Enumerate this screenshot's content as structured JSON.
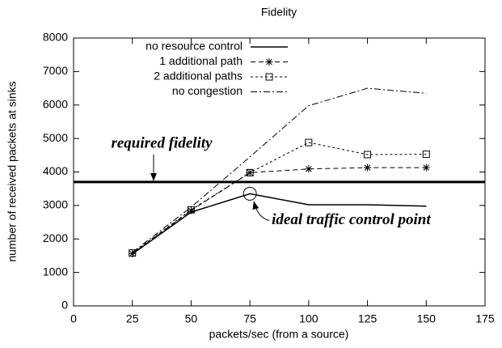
{
  "chart_data": {
    "type": "line",
    "title": "Fidelity",
    "xlabel": "packets/sec (from a source)",
    "ylabel": "number of received packets at sinks",
    "x": [
      25,
      50,
      75,
      100,
      125,
      150
    ],
    "series": [
      {
        "name": "no resource control",
        "color": "#000000",
        "dash": "none",
        "marker": "none",
        "width": 1.5,
        "values": [
          1550,
          2800,
          3350,
          3020,
          3020,
          2980
        ]
      },
      {
        "name": "1 additional path",
        "color": "#000000",
        "dash": "6,4",
        "marker": "star",
        "width": 1,
        "values": [
          1560,
          2850,
          3980,
          4090,
          4130,
          4130
        ]
      },
      {
        "name": "2 additional paths",
        "color": "#000000",
        "dash": "3,3",
        "marker": "square",
        "width": 1,
        "values": [
          1580,
          2870,
          3980,
          4880,
          4520,
          4530
        ]
      },
      {
        "name": "no congestion",
        "color": "#000000",
        "dash": "8,3,2,3",
        "marker": "none",
        "width": 1,
        "values": [
          1600,
          2950,
          4450,
          5980,
          6500,
          6350
        ]
      }
    ],
    "annotations": [
      {
        "text": "required fidelity",
        "y": 3700
      },
      {
        "text": "ideal traffic control point",
        "x": 75,
        "y": 3350
      }
    ],
    "xlim": [
      0,
      175
    ],
    "xticks": [
      0,
      25,
      50,
      75,
      100,
      125,
      150,
      175
    ],
    "ylim": [
      0,
      8000
    ],
    "yticks": [
      0,
      1000,
      2000,
      3000,
      4000,
      5000,
      6000,
      7000,
      8000
    ],
    "grid": false,
    "legend": "upper left"
  }
}
